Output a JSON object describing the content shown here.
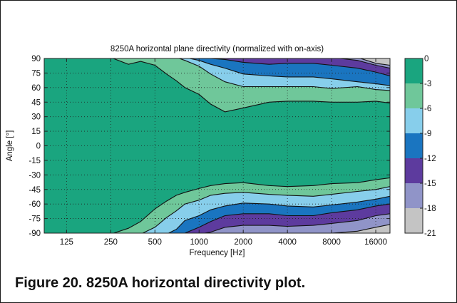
{
  "caption": "Figure 20. 8250A horizontal directivity plot.",
  "chart_data": {
    "type": "heatmap",
    "subtype": "filled-contour",
    "title": "8250A horizontal plane directivity (normalized with on-axis)",
    "xlabel": "Frequency [Hz]",
    "ylabel": "Angle [°]",
    "x_scale": "log",
    "xlim": [
      88,
      20000
    ],
    "ylim": [
      -90,
      90
    ],
    "grid": true,
    "x_ticks": [
      125,
      250,
      500,
      1000,
      2000,
      4000,
      8000,
      16000
    ],
    "x_tick_labels": [
      "125",
      "250",
      "500",
      "1000",
      "2000",
      "4000",
      "8000",
      "16000"
    ],
    "y_ticks": [
      90,
      75,
      60,
      45,
      30,
      15,
      0,
      -15,
      -30,
      -45,
      -60,
      -75,
      -90
    ],
    "y_tick_labels": [
      "90",
      "75",
      "60",
      "45",
      "30",
      "15",
      "0",
      "-15",
      "-30",
      "-45",
      "-60",
      "-75",
      "-90"
    ],
    "colorbar": {
      "levels": [
        0,
        -3,
        -6,
        -9,
        -12,
        -15,
        -18,
        -21
      ],
      "tick_labels": [
        "0",
        "-3",
        "-6",
        "-9",
        "-12",
        "-15",
        "-18",
        "-21"
      ],
      "colors": [
        "#1aa57f",
        "#6fc79a",
        "#87ceeb",
        "#1a75c0",
        "#5d3b9e",
        "#9094c8",
        "#c4c4c4"
      ]
    },
    "contours_upper": {
      "frequency": [
        88,
        180,
        250,
        330,
        400,
        500,
        600,
        700,
        800,
        1000,
        1200,
        1500,
        2000,
        3000,
        4000,
        6000,
        8000,
        12000,
        16000,
        20000
      ],
      "level_-3": [
        91,
        91,
        91,
        84,
        87,
        83,
        74,
        67,
        60,
        53,
        43,
        35,
        39,
        45,
        46,
        46,
        45,
        45,
        46,
        44
      ],
      "level_-6": [
        91,
        91,
        91,
        91,
        91,
        91,
        91,
        91,
        88,
        82,
        74,
        66,
        61,
        61,
        61,
        61,
        59,
        61,
        58,
        57
      ],
      "level_-9": [
        91,
        91,
        91,
        91,
        91,
        91,
        91,
        91,
        91,
        88,
        84,
        80,
        74,
        72,
        71,
        71,
        69,
        66,
        64,
        62
      ],
      "level_-12": [
        91,
        91,
        91,
        91,
        91,
        91,
        91,
        91,
        91,
        91,
        90,
        89,
        86,
        84,
        85,
        85,
        83,
        80,
        76,
        72
      ],
      "level_-15": [
        91,
        91,
        91,
        91,
        91,
        91,
        91,
        91,
        91,
        91,
        91,
        91,
        91,
        91,
        91,
        91,
        91,
        88,
        83,
        80
      ],
      "level_-18": [
        91,
        91,
        91,
        91,
        91,
        91,
        91,
        91,
        91,
        91,
        91,
        91,
        91,
        91,
        91,
        91,
        91,
        91,
        85,
        83
      ]
    },
    "contours_lower": {
      "frequency": [
        88,
        180,
        250,
        330,
        400,
        500,
        600,
        700,
        800,
        1000,
        1200,
        1500,
        2000,
        3000,
        4000,
        6000,
        8000,
        12000,
        16000,
        20000
      ],
      "level_-3": [
        -91,
        -91,
        -91,
        -85,
        -78,
        -65,
        -57,
        -51,
        -48,
        -44,
        -41,
        -39,
        -38,
        -41,
        -42,
        -41,
        -39,
        -38,
        -35,
        -33
      ],
      "level_-6": [
        -91,
        -91,
        -91,
        -91,
        -91,
        -84,
        -74,
        -67,
        -60,
        -56,
        -51,
        -49,
        -48,
        -50,
        -51,
        -52,
        -50,
        -47,
        -45,
        -42
      ],
      "level_-9": [
        -91,
        -91,
        -91,
        -91,
        -91,
        -91,
        -91,
        -86,
        -77,
        -72,
        -66,
        -62,
        -59,
        -60,
        -62,
        -63,
        -61,
        -58,
        -55,
        -52
      ],
      "level_-12": [
        -91,
        -91,
        -91,
        -91,
        -91,
        -91,
        -91,
        -91,
        -90,
        -84,
        -78,
        -72,
        -70,
        -70,
        -72,
        -72,
        -69,
        -66,
        -62,
        -60
      ],
      "level_-15": [
        -91,
        -91,
        -91,
        -91,
        -91,
        -91,
        -91,
        -91,
        -91,
        -91,
        -89,
        -84,
        -82,
        -82,
        -83,
        -82,
        -80,
        -77,
        -72,
        -70
      ],
      "level_-18": [
        -91,
        -91,
        -91,
        -91,
        -91,
        -91,
        -91,
        -91,
        -91,
        -91,
        -91,
        -91,
        -91,
        -91,
        -91,
        -91,
        -90,
        -88,
        -84,
        -81
      ]
    }
  }
}
